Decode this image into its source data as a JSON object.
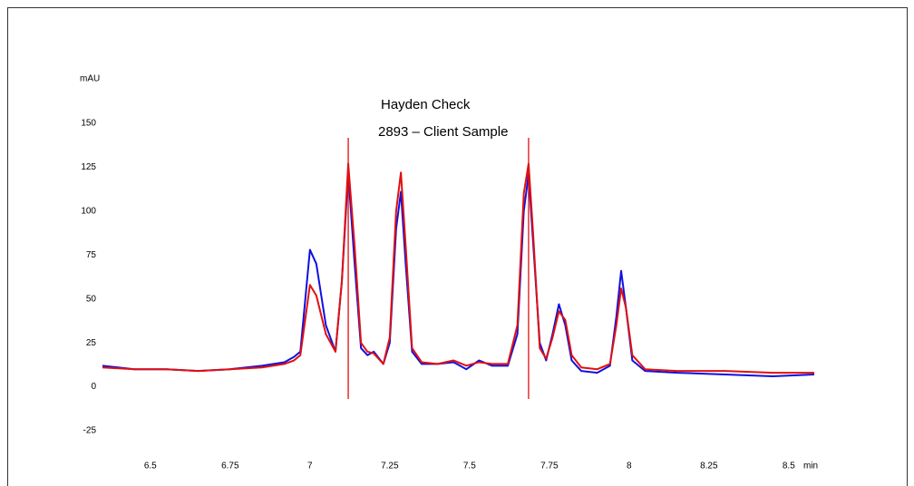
{
  "chart_data": {
    "type": "line",
    "y_label": "mAU",
    "x_label": "min",
    "xlim": [
      6.35,
      8.58
    ],
    "ylim": [
      -25,
      150
    ],
    "xticks": [
      6.5,
      6.75,
      7,
      7.25,
      7.5,
      7.75,
      8,
      8.25,
      8.5
    ],
    "yticks": [
      -25,
      0,
      25,
      50,
      75,
      100,
      125,
      150
    ],
    "markers": [
      7.12,
      7.685
    ],
    "marker_color": "#e01010",
    "x": [
      6.35,
      6.45,
      6.55,
      6.65,
      6.75,
      6.85,
      6.92,
      6.95,
      6.97,
      7.0,
      7.02,
      7.05,
      7.08,
      7.1,
      7.12,
      7.14,
      7.16,
      7.18,
      7.2,
      7.23,
      7.25,
      7.27,
      7.285,
      7.3,
      7.32,
      7.35,
      7.4,
      7.45,
      7.49,
      7.53,
      7.57,
      7.62,
      7.65,
      7.67,
      7.685,
      7.7,
      7.72,
      7.74,
      7.76,
      7.78,
      7.8,
      7.82,
      7.85,
      7.9,
      7.94,
      7.96,
      7.975,
      7.99,
      8.01,
      8.05,
      8.15,
      8.3,
      8.45,
      8.58
    ],
    "series": [
      {
        "name": "Hayden Check",
        "color": "#1010e0",
        "values": [
          12,
          10,
          10,
          9,
          10,
          12,
          14,
          17,
          20,
          78,
          70,
          35,
          20,
          60,
          122,
          70,
          22,
          18,
          20,
          13,
          25,
          90,
          111,
          70,
          20,
          13,
          13,
          14,
          10,
          15,
          12,
          12,
          30,
          100,
          121,
          80,
          25,
          15,
          30,
          47,
          35,
          15,
          9,
          8,
          12,
          40,
          66,
          45,
          15,
          9,
          8,
          7,
          6,
          7
        ]
      },
      {
        "name": "2893 – Client Sample",
        "color": "#e01010",
        "values": [
          11,
          10,
          10,
          9,
          10,
          11,
          13,
          15,
          18,
          58,
          52,
          30,
          20,
          60,
          127,
          80,
          25,
          20,
          19,
          13,
          28,
          100,
          122,
          80,
          22,
          14,
          13,
          15,
          12,
          14,
          13,
          13,
          35,
          110,
          127,
          85,
          22,
          16,
          28,
          43,
          38,
          18,
          11,
          10,
          13,
          35,
          56,
          45,
          18,
          10,
          9,
          9,
          8,
          8
        ]
      }
    ]
  }
}
